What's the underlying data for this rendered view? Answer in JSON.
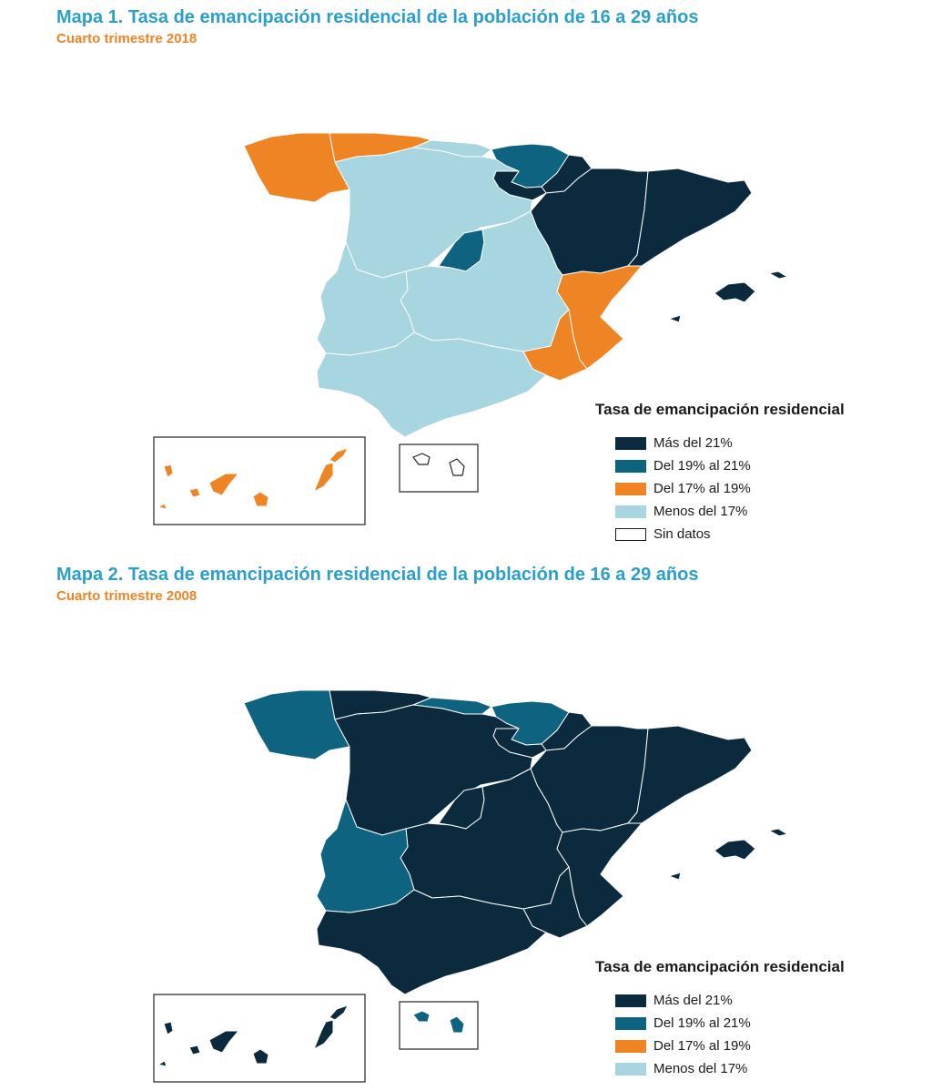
{
  "colors": {
    "mas21": "#0c2a3e",
    "c19_21": "#0e6381",
    "c17_19": "#ef8424",
    "menos17": "#a7d5e0",
    "sin_datos": "#ffffff",
    "title": "#2a9fc9",
    "subtitle": "#ef8424"
  },
  "maps": [
    {
      "title": "Mapa 1. Tasa de emancipación residencial de la población de 16 a 29 años",
      "subtitle": "Cuarto trimestre 2018",
      "legend": {
        "title": "Tasa de emancipación residencial",
        "items": [
          {
            "label": "Más del 21%",
            "color": "#0c2a3e"
          },
          {
            "label": "Del 19% al 21%",
            "color": "#0e6381"
          },
          {
            "label": "Del 17% al 19%",
            "color": "#ef8424"
          },
          {
            "label": "Menos del 17%",
            "color": "#a7d5e0"
          },
          {
            "label": "Sin datos",
            "color": "#ffffff"
          }
        ]
      },
      "regions": {
        "galicia": "c17_19",
        "asturias": "c17_19",
        "cantabria": "menos17",
        "pais_vasco": "c19_21",
        "navarra": "mas21",
        "la_rioja": "mas21",
        "aragon": "mas21",
        "cataluna": "mas21",
        "castilla_leon": "menos17",
        "madrid": "c19_21",
        "castilla_la_mancha": "menos17",
        "extremadura": "menos17",
        "valencia": "c17_19",
        "murcia": "c17_19",
        "andalucia": "menos17",
        "baleares": "mas21",
        "canarias": "c17_19",
        "ceuta_melilla": "sin_datos"
      }
    },
    {
      "title": "Mapa 2. Tasa de emancipación residencial de la población de 16 a 29 años",
      "subtitle": "Cuarto  trimestre 2008",
      "legend": {
        "title": "Tasa de emancipación residencial",
        "items": [
          {
            "label": "Más del 21%",
            "color": "#0c2a3e"
          },
          {
            "label": "Del 19% al 21%",
            "color": "#0e6381"
          },
          {
            "label": "Del 17% al 19%",
            "color": "#ef8424"
          },
          {
            "label": "Menos del 17%",
            "color": "#a7d5e0"
          }
        ]
      },
      "regions": {
        "galicia": "c19_21",
        "asturias": "mas21",
        "cantabria": "c19_21",
        "pais_vasco": "c19_21",
        "navarra": "mas21",
        "la_rioja": "mas21",
        "aragon": "mas21",
        "cataluna": "mas21",
        "castilla_leon": "mas21",
        "madrid": "mas21",
        "castilla_la_mancha": "mas21",
        "extremadura": "c19_21",
        "valencia": "mas21",
        "murcia": "mas21",
        "andalucia": "mas21",
        "baleares": "mas21",
        "canarias": "mas21",
        "ceuta_melilla": "c19_21"
      }
    }
  ]
}
